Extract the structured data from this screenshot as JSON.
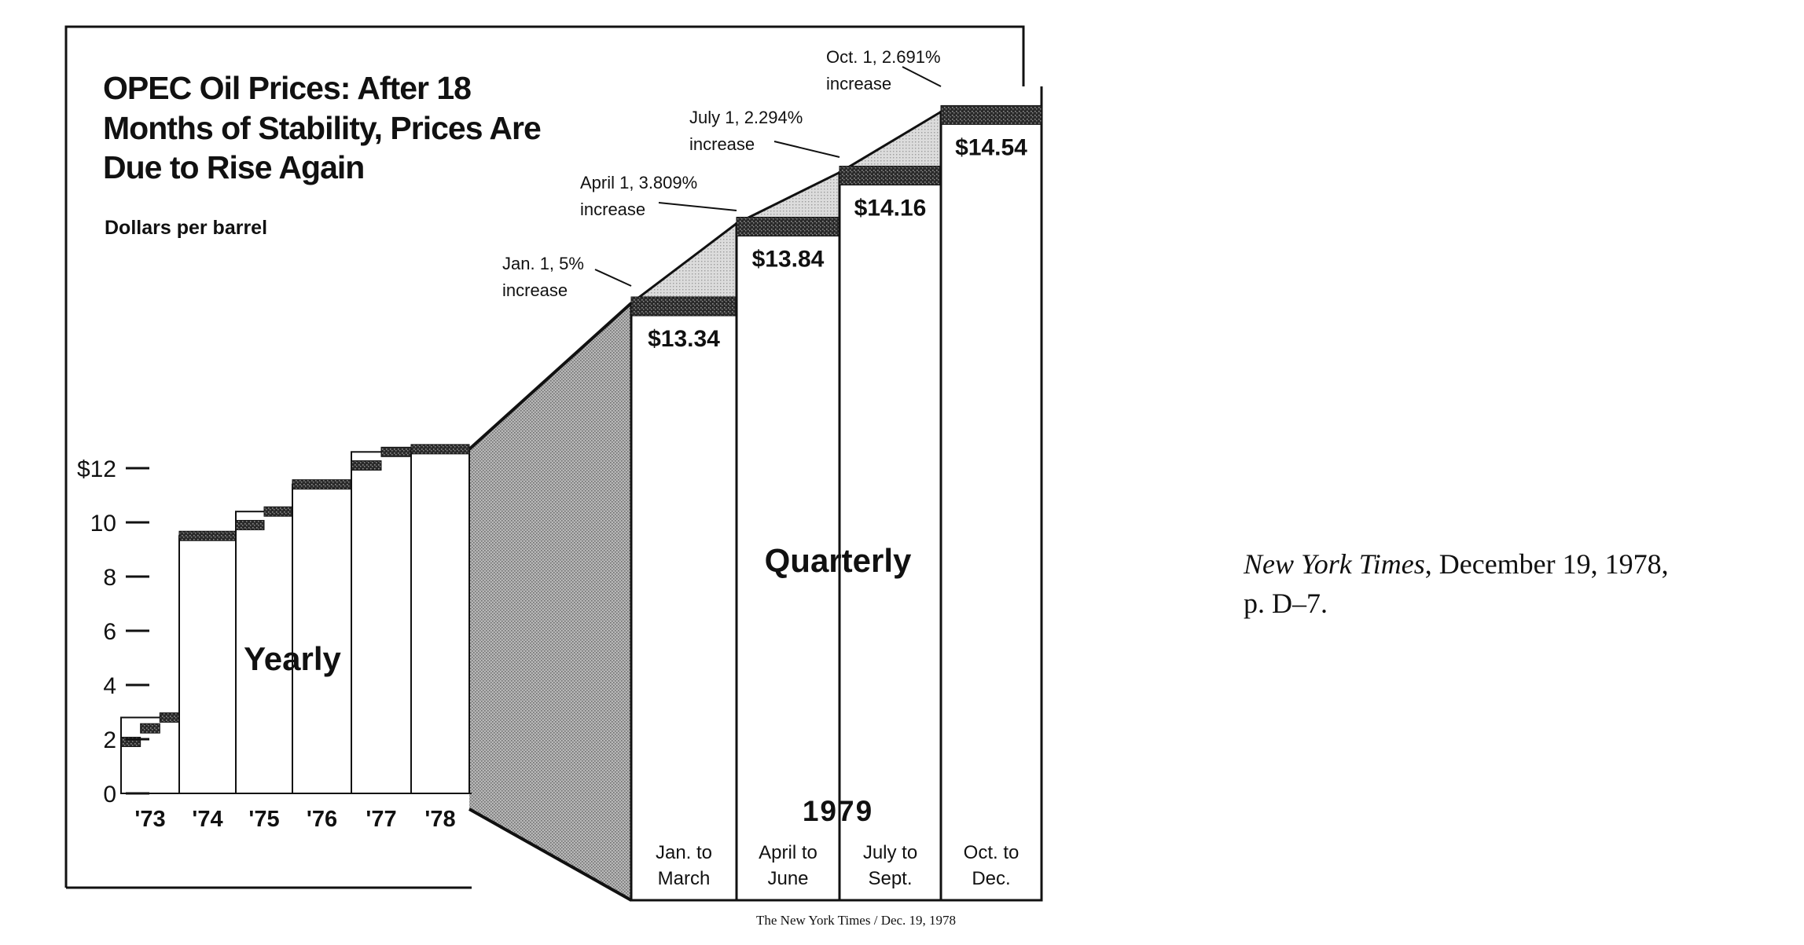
{
  "chart_data": {
    "type": "bar",
    "title": "OPEC Oil Prices: After 18 Months of Stability, Prices Are Due to Rise Again",
    "title_lines": [
      "OPEC Oil Prices: After 18",
      "Months of Stability, Prices Are",
      "Due to Rise Again"
    ],
    "ylabel": "Dollars per barrel",
    "ylim": [
      0,
      12
    ],
    "yticks": [
      {
        "value": 12,
        "label": "$12"
      },
      {
        "value": 10,
        "label": "10"
      },
      {
        "value": 8,
        "label": "8"
      },
      {
        "value": 6,
        "label": "6"
      },
      {
        "value": 4,
        "label": "4"
      },
      {
        "value": 2,
        "label": "2"
      },
      {
        "value": 0,
        "label": "0"
      }
    ],
    "yearly": {
      "label": "Yearly",
      "categories": [
        "'73",
        "'74",
        "'75",
        "'76",
        "'77",
        "'78"
      ],
      "steps": [
        [
          1.9,
          2.4,
          2.8
        ],
        [
          9.5
        ],
        [
          9.9,
          10.4
        ],
        [
          11.4
        ],
        [
          12.1,
          12.6
        ],
        [
          12.7
        ]
      ]
    },
    "quarterly": {
      "label": "Quarterly",
      "year": "1979",
      "categories": [
        [
          "Jan. to",
          "March"
        ],
        [
          "April to",
          "June"
        ],
        [
          "July to",
          "Sept."
        ],
        [
          "Oct. to",
          "Dec."
        ]
      ],
      "price_labels": [
        "$13.34",
        "$13.84",
        "$14.16",
        "$14.54"
      ],
      "values": [
        13.34,
        13.84,
        14.16,
        14.54
      ],
      "annotations": [
        [
          "Jan. 1, 5%",
          "increase"
        ],
        [
          "April 1, 3.809%",
          "increase"
        ],
        [
          "July 1, 2.294%",
          "increase"
        ],
        [
          "Oct. 1, 2.691%",
          "increase"
        ]
      ]
    },
    "credit": "The New York Times / Dec. 19, 1978"
  },
  "caption": {
    "source": "New York Times",
    "rest": ", December 19, 1978,",
    "line2": "p. D–7."
  },
  "colors": {
    "ink": "#111111",
    "stipple": "#8a8a8a",
    "light_stipple": "#c9c9c9",
    "background": "#ffffff"
  }
}
